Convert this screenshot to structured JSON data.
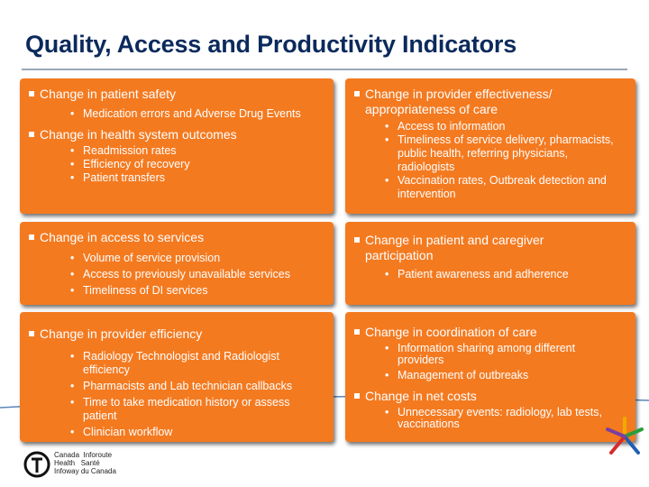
{
  "title": "Quality, Access and Productivity Indicators",
  "cards": {
    "tl": {
      "h1": "Change in patient safety",
      "b1": [
        "Medication errors and Adverse Drug Events"
      ],
      "h2": "Change in health system outcomes",
      "b2": [
        "Readmission rates",
        "Efficiency of recovery",
        "Patient transfers"
      ]
    },
    "tr": {
      "h1a": "Change in provider effectiveness/",
      "h1b": "appropriateness of care",
      "b1": [
        "Access to information",
        "Timeliness of service delivery, pharmacists, public health, referring physicians, radiologists",
        "Vaccination rates,  Outbreak detection and intervention"
      ]
    },
    "ml": {
      "h1": "Change in access to services",
      "b1": [
        "Volume of service provision",
        "Access to previously unavailable services",
        "Timeliness of DI services"
      ]
    },
    "mr": {
      "h1a": "Change in patient and caregiver",
      "h1b": "participation",
      "b1": [
        "Patient awareness and adherence"
      ]
    },
    "bl": {
      "h1": "Change in provider efficiency",
      "b1": [
        "Radiology Technologist and Radiologist efficiency",
        "Pharmacists and Lab technician callbacks",
        "Time to take medication history or assess patient",
        "Clinician workflow"
      ]
    },
    "br": {
      "h1": "Change in coordination of care",
      "b1": [
        "Information sharing among different providers",
        "Management of outbreaks"
      ],
      "h2": "Change in net costs",
      "b2": [
        "Unnecessary events: radiology, lab tests, vaccinations"
      ]
    }
  },
  "logo": {
    "line1a": "Canada",
    "line1b": "Inforoute",
    "line2a": "Health",
    "line2b": "Santé",
    "line3a": "Infoway",
    "line3b": "du Canada"
  },
  "colors": {
    "card": "#f47a20",
    "title": "#0b2a5c"
  }
}
